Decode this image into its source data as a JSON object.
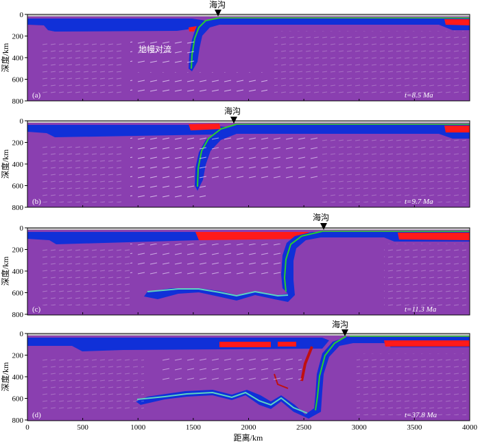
{
  "figure": {
    "x_axis_label": "距离/km",
    "x_ticks": [
      0,
      500,
      1000,
      1500,
      2000,
      2500,
      3000,
      3500,
      4000
    ],
    "y_ticks": [
      0,
      200,
      400,
      600,
      800
    ],
    "y_axis_label": "深度/km",
    "trench_label": "海沟",
    "convection_label": "地幔对流",
    "colors": {
      "mantle": "#8a3fb0",
      "slab": "#1030d8",
      "crust": "#ff1a1a",
      "sediment": "#2bd02b",
      "surface": "#c8c8c8",
      "frame": "#000000"
    }
  },
  "panels": [
    {
      "letter": "(a)",
      "time": "t=8.5 Ma",
      "trench_km": 1720
    },
    {
      "letter": "(b)",
      "time": "t=9.7 Ma",
      "trench_km": 1870
    },
    {
      "letter": "(c)",
      "time": "t=11.3 Ma",
      "trench_km": 2680
    },
    {
      "letter": "(d)",
      "time": "t=37.8 Ma",
      "trench_km": 2890
    }
  ]
}
